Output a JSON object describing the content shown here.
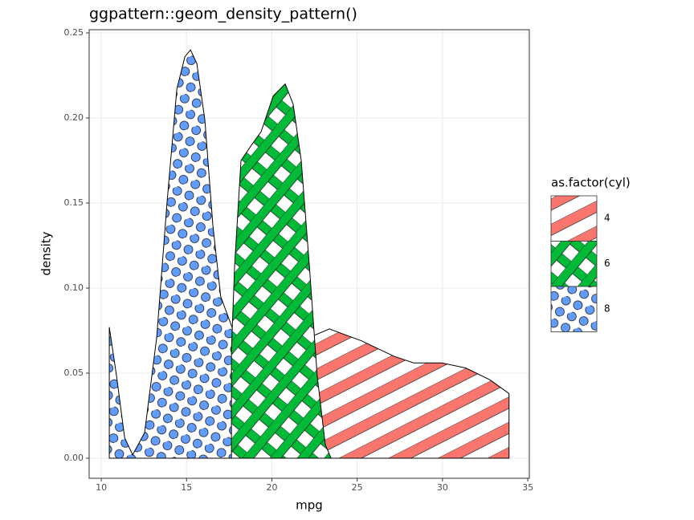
{
  "chart_data": {
    "type": "area",
    "title": "ggpattern::geom_density_pattern()",
    "x_label": "mpg",
    "y_label": "density",
    "legend_title": "as.factor(cyl)",
    "xlim": [
      9.29,
      35.09
    ],
    "ylim": [
      -0.0118,
      0.2519
    ],
    "xticks": [
      10,
      15,
      20,
      25,
      30,
      35
    ],
    "yticks": [
      {
        "value": 0,
        "label": "0.00"
      },
      {
        "value": 0.05,
        "label": "0.05"
      },
      {
        "value": 0.1,
        "label": "0.10"
      },
      {
        "value": 0.15,
        "label": "0.15"
      },
      {
        "value": 0.2,
        "label": "0.20"
      },
      {
        "value": 0.25,
        "label": "0.25"
      }
    ],
    "grid": true,
    "legend_position": "right",
    "series": [
      {
        "name": "4",
        "color": "#f8766d",
        "pattern": "stripe",
        "x": [
          20.31,
          21.02,
          21.72,
          22.43,
          23.37,
          25.25,
          27.14,
          28.31,
          29.96,
          31.37,
          32.79,
          33.9
        ],
        "values": [
          0.005,
          0.033,
          0.062,
          0.072,
          0.076,
          0.069,
          0.06,
          0.056,
          0.056,
          0.053,
          0.046,
          0.038
        ]
      },
      {
        "name": "6",
        "color": "#00ba38",
        "pattern": "crosshatch",
        "x": [
          17.63,
          17.82,
          18.19,
          18.8,
          19.37,
          20.08,
          20.78,
          21.25,
          21.72,
          22.19,
          22.66,
          23.13,
          23.47
        ],
        "values": [
          0.064,
          0.114,
          0.175,
          0.184,
          0.192,
          0.213,
          0.22,
          0.208,
          0.175,
          0.114,
          0.048,
          0.008,
          0
        ]
      },
      {
        "name": "8",
        "color": "#619cff",
        "pattern": "circle",
        "x": [
          10.47,
          10.9,
          11.37,
          11.84,
          12.54,
          13.25,
          13.86,
          14.43,
          14.9,
          15.23,
          15.6,
          16.07,
          16.54,
          17.0,
          17.7,
          18.33,
          18.8,
          19.13,
          19.6,
          20.08,
          20.45
        ],
        "values": [
          0.077,
          0.048,
          0.012,
          0.002,
          0.015,
          0.071,
          0.151,
          0.217,
          0.236,
          0.24,
          0.232,
          0.199,
          0.137,
          0.095,
          0.076,
          0.07,
          0.076,
          0.074,
          0.038,
          0.01,
          0
        ]
      }
    ]
  }
}
